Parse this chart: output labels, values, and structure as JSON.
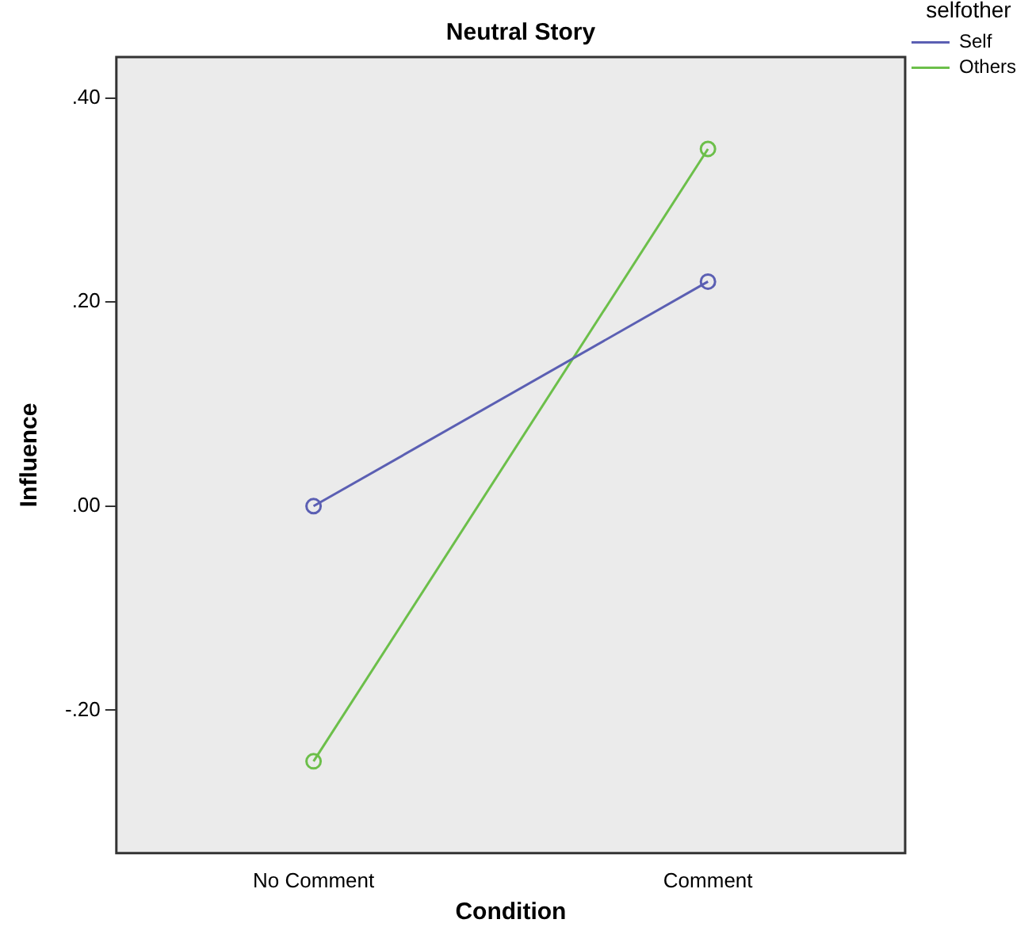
{
  "chart_data": {
    "type": "line",
    "title": "Neutral Story",
    "xlabel": "Condition",
    "ylabel": "Influence",
    "legend_title": "selfother",
    "legend": "top right",
    "marker": "circle",
    "grid": false,
    "categories": [
      "No Comment",
      "Comment"
    ],
    "ylim": [
      -0.34,
      0.44
    ],
    "yticks": [
      {
        "value": -0.2,
        "label": "-.20"
      },
      {
        "value": 0,
        "label": ".00"
      },
      {
        "value": 0.2,
        "label": ".20"
      },
      {
        "value": 0.4,
        "label": ".40"
      }
    ],
    "series": [
      {
        "name": "Self",
        "color": "#5b5fb3",
        "values": [
          0.0,
          0.22
        ]
      },
      {
        "name": "Others",
        "color": "#6cbf4a",
        "values": [
          -0.25,
          0.35
        ]
      }
    ]
  }
}
